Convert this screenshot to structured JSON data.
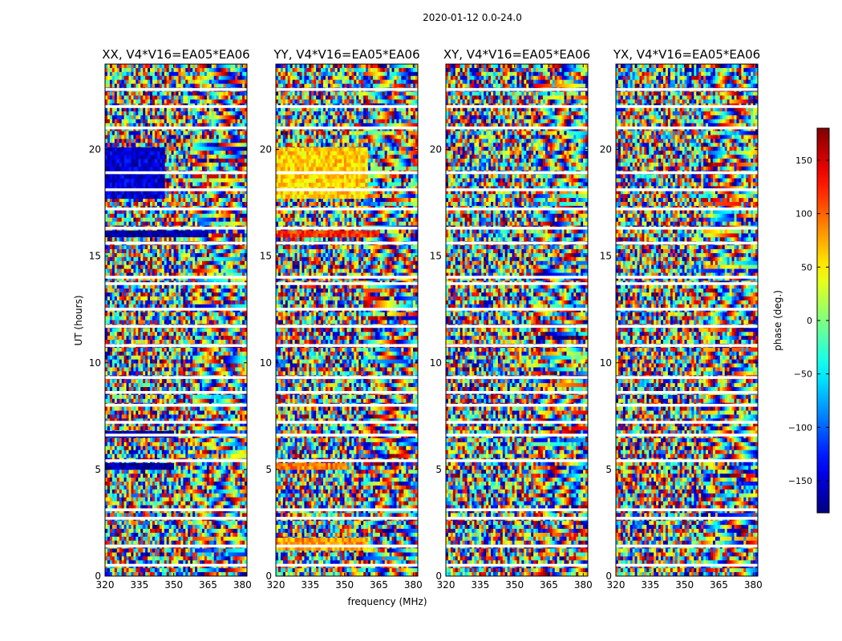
{
  "chart_data": {
    "type": "heatmap",
    "title": "2020-01-12 0.0-24.0",
    "xlabel": "frequency (MHz)",
    "ylabel": "UT (hours)",
    "xlim": [
      320,
      382
    ],
    "ylim": [
      0,
      24
    ],
    "x_ticks": [
      320,
      335,
      350,
      365,
      380
    ],
    "y_ticks": [
      0,
      5,
      10,
      15,
      20
    ],
    "colorbar": {
      "label": "phase (deg.)",
      "range": [
        -180,
        180
      ],
      "ticks": [
        -150,
        -100,
        -50,
        0,
        50,
        100,
        150
      ],
      "colormap": "jet",
      "colors": [
        "#00007f",
        "#0000ff",
        "#007fff",
        "#00ffff",
        "#7fff7f",
        "#ffff00",
        "#ff7f00",
        "#ff0000",
        "#7f0000"
      ]
    },
    "panels": [
      {
        "title": "XX, V4*V16=EA05*EA06"
      },
      {
        "title": "YY, V4*V16=EA05*EA06"
      },
      {
        "title": "XY, V4*V16=EA05*EA06"
      },
      {
        "title": "YX, V4*V16=EA05*EA06"
      }
    ],
    "flagged_ut_hours": [
      0.5,
      1.4,
      2.7,
      3.1,
      5.4,
      6.6,
      7.2,
      8.0,
      8.6,
      9.3,
      10.8,
      11.7,
      12.5,
      13.7,
      14.0,
      15.6,
      16.3,
      17.2,
      18.1,
      18.9,
      21.0,
      22.0,
      22.8
    ],
    "features": [
      {
        "panel": 0,
        "f0": 320,
        "f1": 346,
        "t0": 17.7,
        "t1": 20.1,
        "phase": -150,
        "note": "coherent low phase region"
      },
      {
        "panel": 1,
        "f0": 320,
        "f1": 360,
        "t0": 17.7,
        "t1": 20.1,
        "phase": 60,
        "note": "coherent high phase region"
      },
      {
        "panel": 0,
        "f0": 320,
        "f1": 365,
        "t0": 15.9,
        "t1": 16.2,
        "phase": -170
      },
      {
        "panel": 1,
        "f0": 320,
        "f1": 365,
        "t0": 15.9,
        "t1": 16.2,
        "phase": 120
      },
      {
        "panel": 0,
        "f0": 320,
        "f1": 350,
        "t0": 5.0,
        "t1": 5.3,
        "phase": -170
      },
      {
        "panel": 1,
        "f0": 320,
        "f1": 350,
        "t0": 5.0,
        "t1": 5.3,
        "phase": 90
      },
      {
        "panel": 0,
        "f0": 320,
        "f1": 350,
        "t0": 6.5,
        "t1": 6.8,
        "phase": -170
      },
      {
        "panel": 1,
        "f0": 320,
        "f1": 360,
        "t0": 1.2,
        "t1": 1.8,
        "phase": 80
      }
    ]
  }
}
